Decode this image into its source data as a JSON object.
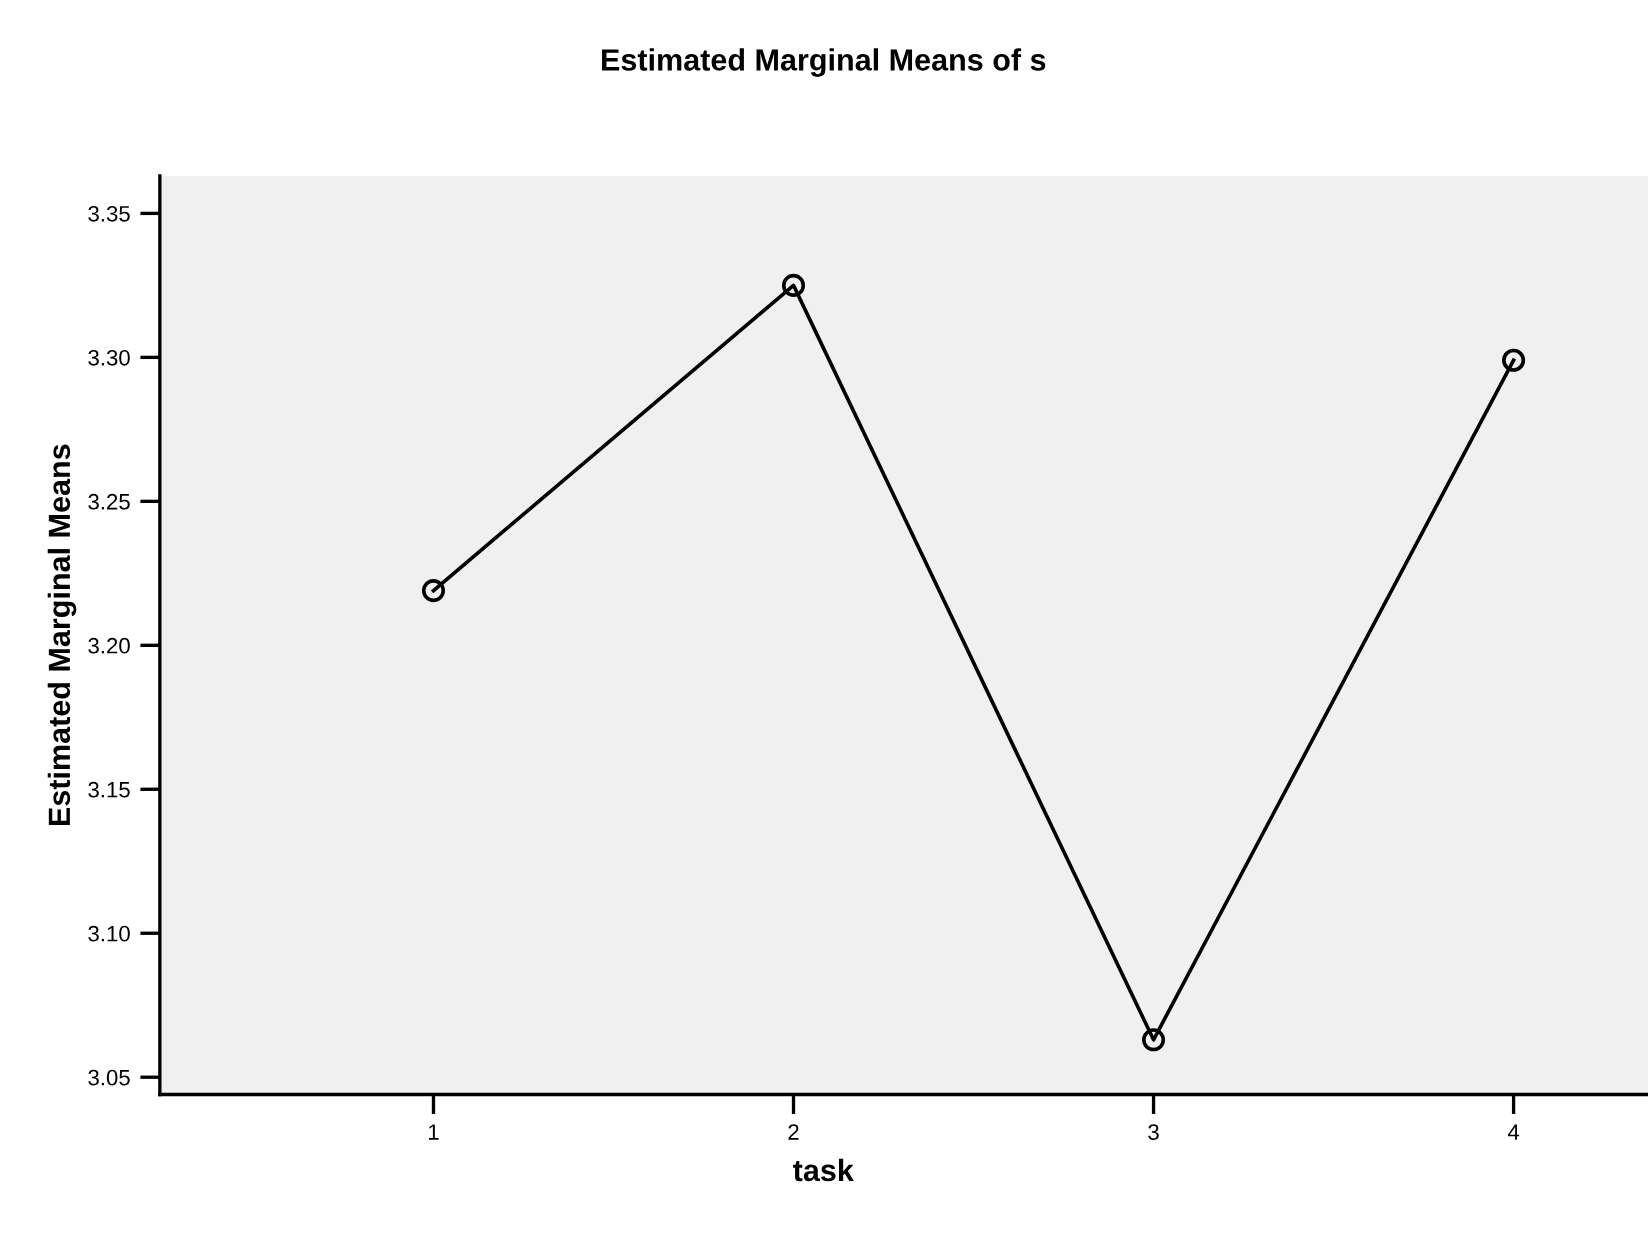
{
  "chart_data": {
    "type": "line",
    "title": "Estimated Marginal Means of s",
    "xlabel": "task",
    "ylabel": "Estimated Marginal Means",
    "categories": [
      "1",
      "2",
      "3",
      "4"
    ],
    "series": [
      {
        "color": "#000000",
        "values": [
          3.219,
          3.325,
          3.063,
          3.299
        ]
      }
    ],
    "ylim": [
      3.044,
      3.363
    ],
    "yticks": [
      {
        "value": 3.05,
        "label": "3.05"
      },
      {
        "value": 3.1,
        "label": "3.10"
      },
      {
        "value": 3.15,
        "label": "3.15"
      },
      {
        "value": 3.2,
        "label": "3.20"
      },
      {
        "value": 3.25,
        "label": "3.25"
      },
      {
        "value": 3.3,
        "label": "3.30"
      },
      {
        "value": 3.35,
        "label": "3.35"
      }
    ],
    "grid": false,
    "marker": "circle",
    "line_style": "solid"
  }
}
